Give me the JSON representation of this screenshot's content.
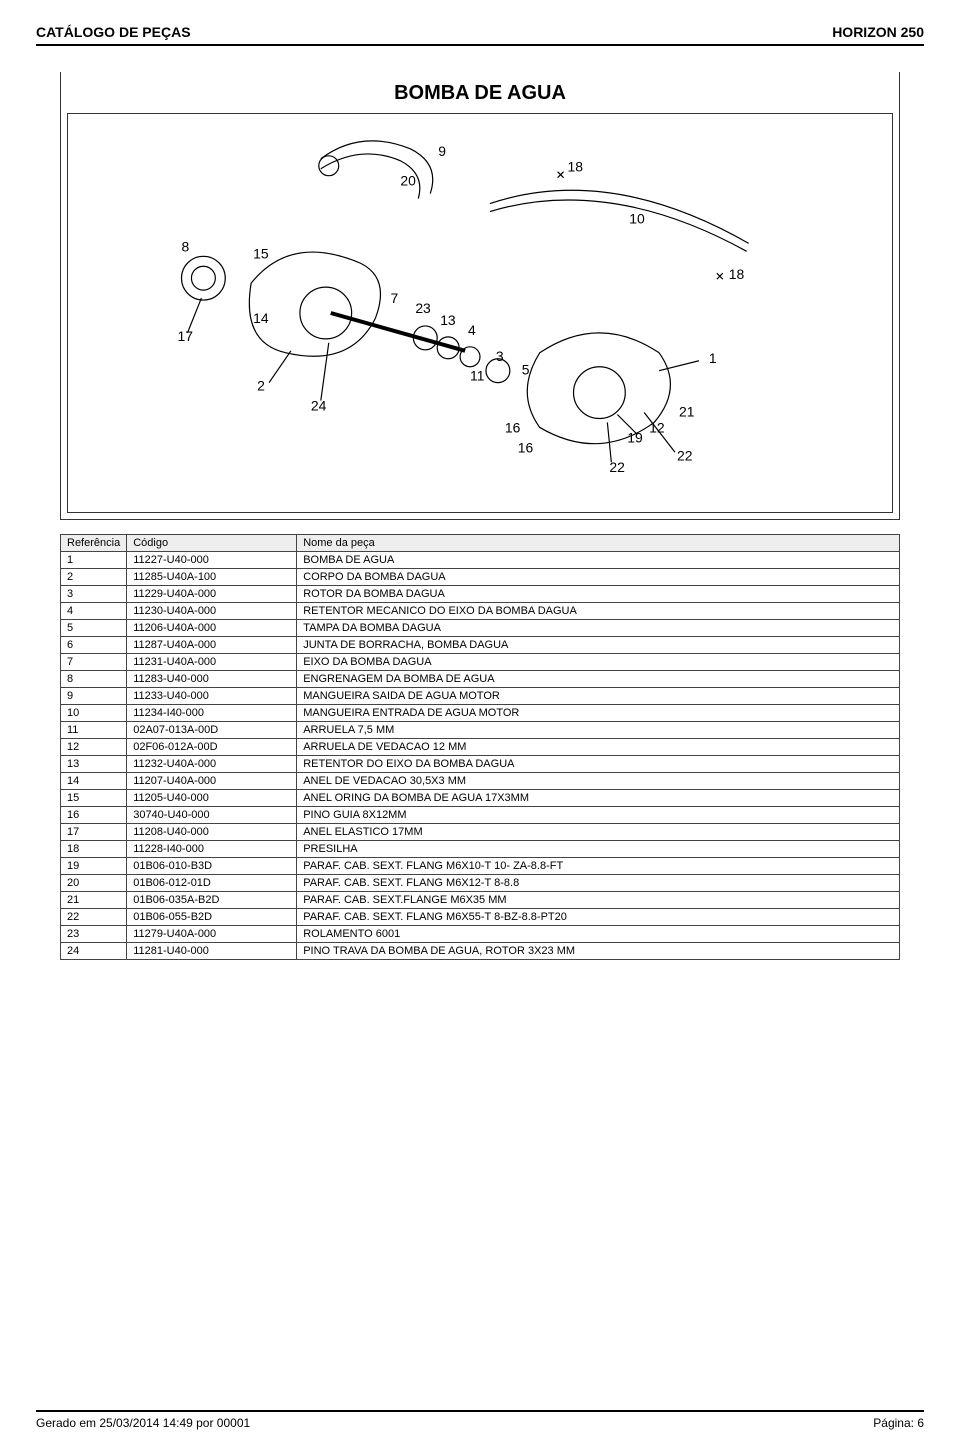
{
  "header": {
    "left": "CATÁLOGO DE PEÇAS",
    "right": "HORIZON 250"
  },
  "title": "BOMBA DE AGUA",
  "table": {
    "columns": [
      "Referência",
      "Código",
      "Nome da peça"
    ],
    "rows": [
      [
        "1",
        "11227-U40-000",
        "BOMBA DE AGUA"
      ],
      [
        "2",
        "11285-U40A-100",
        "CORPO DA BOMBA DAGUA"
      ],
      [
        "3",
        "11229-U40A-000",
        "ROTOR DA BOMBA DAGUA"
      ],
      [
        "4",
        "11230-U40A-000",
        "RETENTOR MECANICO DO EIXO DA BOMBA DAGUA"
      ],
      [
        "5",
        "11206-U40A-000",
        "TAMPA DA BOMBA DAGUA"
      ],
      [
        "6",
        "11287-U40A-000",
        "JUNTA DE BORRACHA, BOMBA DAGUA"
      ],
      [
        "7",
        "11231-U40A-000",
        "EIXO DA BOMBA DAGUA"
      ],
      [
        "8",
        "11283-U40-000",
        "ENGRENAGEM DA BOMBA DE AGUA"
      ],
      [
        "9",
        "11233-U40-000",
        "MANGUEIRA SAIDA DE AGUA MOTOR"
      ],
      [
        "10",
        "11234-I40-000",
        "MANGUEIRA ENTRADA DE AGUA MOTOR"
      ],
      [
        "11",
        "02A07-013A-00D",
        "ARRUELA 7,5 MM"
      ],
      [
        "12",
        "02F06-012A-00D",
        "ARRUELA DE VEDACAO 12 MM"
      ],
      [
        "13",
        "11232-U40A-000",
        "RETENTOR DO EIXO DA BOMBA DAGUA"
      ],
      [
        "14",
        "11207-U40A-000",
        "ANEL DE VEDACAO 30,5X3 MM"
      ],
      [
        "15",
        "11205-U40-000",
        "ANEL ORING DA BOMBA DE AGUA 17X3MM"
      ],
      [
        "16",
        "30740-U40-000",
        "PINO GUIA 8X12MM"
      ],
      [
        "17",
        "11208-U40-000",
        "ANEL ELASTICO 17MM"
      ],
      [
        "18",
        "11228-I40-000",
        "PRESILHA"
      ],
      [
        "19",
        "01B06-010-B3D",
        "PARAF. CAB. SEXT. FLANG M6X10-T 10- ZA-8.8-FT"
      ],
      [
        "20",
        "01B06-012-01D",
        "PARAF. CAB. SEXT. FLANG M6X12-T 8-8.8"
      ],
      [
        "21",
        "01B06-035A-B2D",
        "PARAF. CAB. SEXT.FLANGE M6X35 MM"
      ],
      [
        "22",
        "01B06-055-B2D",
        "PARAF. CAB. SEXT. FLANG M6X55-T 8-BZ-8.8-PT20"
      ],
      [
        "23",
        "11279-U40A-000",
        "ROLAMENTO 6001"
      ],
      [
        "24",
        "11281-U40-000",
        "PINO TRAVA DA BOMBA DE AGUA, ROTOR 3X23 MM"
      ]
    ]
  },
  "diagram": {
    "callouts": [
      "1",
      "2",
      "3",
      "4",
      "5",
      "7",
      "8",
      "9",
      "10",
      "11",
      "12",
      "13",
      "14",
      "15",
      "16",
      "17",
      "18",
      "19",
      "20",
      "21",
      "22",
      "23",
      "24"
    ],
    "font_size_label": 14,
    "color": "#000000",
    "background": "#ffffff"
  },
  "footer": {
    "left": "Gerado em 25/03/2014 14:49 por 00001",
    "right": "Página: 6"
  },
  "styling": {
    "page_border_color": "#000000",
    "table_border_color": "#444444",
    "table_header_bg": "#eeeeee",
    "table_font_size": 11,
    "title_font_size": 20
  }
}
